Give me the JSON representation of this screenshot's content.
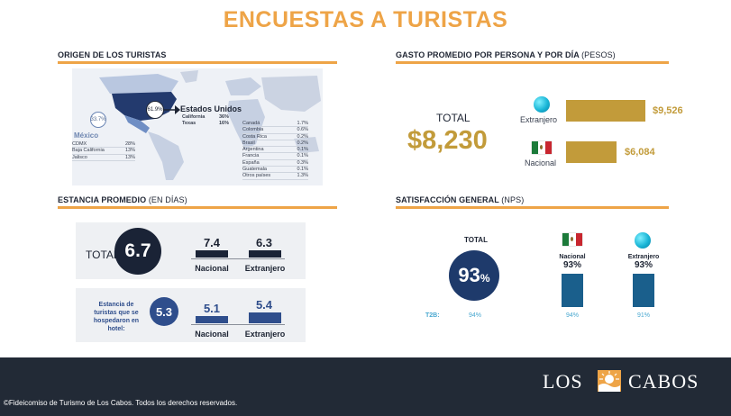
{
  "title": "ENCUESTAS A TURISTAS",
  "origen": {
    "heading": "ORIGEN DE LOS TURISTAS",
    "us_pct": "61.9%",
    "us_label": "Estados Unidos",
    "us_states": [
      {
        "name": "California",
        "value": "36%"
      },
      {
        "name": "Texas",
        "value": "16%"
      }
    ],
    "mx_pct": "33.7%",
    "mx_label": "México",
    "mx_states": [
      {
        "name": "CDMX",
        "value": "28%"
      },
      {
        "name": "Baja California",
        "value": "13%"
      },
      {
        "name": "Jalisco",
        "value": "13%"
      }
    ],
    "others": [
      {
        "name": "Canadá",
        "value": "1.7%"
      },
      {
        "name": "Colombia",
        "value": "0.6%"
      },
      {
        "name": "Costa Rica",
        "value": "0.2%"
      },
      {
        "name": "Brasil",
        "value": "0.2%"
      },
      {
        "name": "Argentina",
        "value": "0.1%"
      },
      {
        "name": "Francia",
        "value": "0.1%"
      },
      {
        "name": "España",
        "value": "0.3%"
      },
      {
        "name": "Guatemala",
        "value": "0.1%"
      },
      {
        "name": "Otros países",
        "value": "1.3%"
      }
    ]
  },
  "gasto": {
    "heading": "GASTO PROMEDIO POR PERSONA Y POR DÍA",
    "heading_unit": "(PESOS)",
    "total_label": "TOTAL",
    "total_value": "$8,230",
    "extranjero_label": "Extranjero",
    "extranjero_value": "$9,526",
    "extranjero_amount": 9526,
    "nacional_label": "Nacional",
    "nacional_value": "$6,084",
    "nacional_amount": 6084
  },
  "estancia": {
    "heading": "ESTANCIA PROMEDIO",
    "heading_unit": "(EN DÍAS)",
    "total_label": "TOTAL",
    "total_value": "6.7",
    "nacional_label": "Nacional",
    "extranjero_label": "Extranjero",
    "nacional_value": "7.4",
    "extranjero_value": "6.3",
    "hotel_text": "Estancia de turistas que se hospedaron en hotel:",
    "hotel_value": "5.3",
    "hotel_nacional_value": "5.1",
    "hotel_extranjero_value": "5.4"
  },
  "satisfaccion": {
    "heading": "SATISFACCIÓN GENERAL",
    "heading_unit": "(NPS)",
    "total_label": "TOTAL",
    "total_value": "93",
    "total_suffix": "%",
    "nacional_label": "Nacional",
    "nacional_value": "93%",
    "nacional_pct": 93,
    "extranjero_label": "Extranjero",
    "extranjero_value": "93%",
    "extranjero_pct": 93,
    "t2b_label": "T2B:",
    "t2b_total": "94%",
    "t2b_nacional": "94%",
    "t2b_extranjero": "91%"
  },
  "footer": {
    "copyright": "©Fideicomiso de Turismo de Los Cabos. Todos los derechos reservados.",
    "logo_left": "LOS",
    "logo_right": "CABOS"
  },
  "colors": {
    "orange": "#eea447",
    "gold": "#c29b3a",
    "navy": "#1a2336",
    "blue": "#2f4e8c",
    "nps_bar": "#1a5f8c",
    "footer_bg": "#222a36"
  }
}
